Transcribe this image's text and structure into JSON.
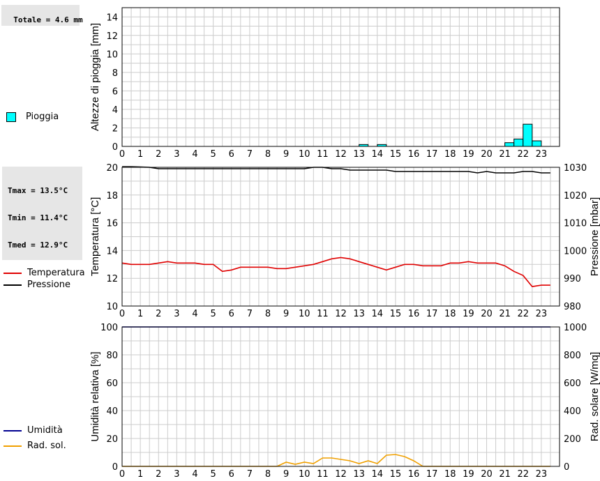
{
  "stats": {
    "rain_total": "Totale = 4.6 mm",
    "tmax": "Tmax = 13.5°C",
    "tmin": "Tmin = 11.4°C",
    "tmed": "Tmed = 12.9°C"
  },
  "legends": {
    "rain": "Pioggia",
    "temp": "Temperatura",
    "press": "Pressione",
    "hum": "Umidità",
    "rad": "Rad. sol."
  },
  "colors": {
    "rain": "#00ffff",
    "temp": "#e00000",
    "press": "#000000",
    "hum": "#000090",
    "rad": "#f0a000",
    "grid": "#cccccc"
  },
  "chart_data": [
    {
      "type": "bar",
      "title": "",
      "xlabel": "",
      "ylabel": "Altezze di pioggia [mm]",
      "xlim": [
        0,
        24
      ],
      "xticks": [
        0,
        1,
        2,
        3,
        4,
        5,
        6,
        7,
        8,
        9,
        10,
        11,
        12,
        13,
        14,
        15,
        16,
        17,
        18,
        19,
        20,
        21,
        22,
        23
      ],
      "ylim": [
        0,
        15
      ],
      "yticks": [
        0,
        2,
        4,
        6,
        8,
        10,
        12,
        14
      ],
      "series": [
        {
          "name": "Pioggia",
          "bars": [
            {
              "x": 13.0,
              "value": 0.2
            },
            {
              "x": 14.0,
              "value": 0.2
            },
            {
              "x": 21.0,
              "value": 0.4
            },
            {
              "x": 21.5,
              "value": 0.8
            },
            {
              "x": 22.0,
              "value": 2.4
            },
            {
              "x": 22.5,
              "value": 0.6
            }
          ],
          "bar_width": 0.5
        }
      ]
    },
    {
      "type": "line",
      "title": "",
      "xlabel": "",
      "ylabel": "Temperatura [°C]",
      "y2label": "Pressione [mbar]",
      "xlim": [
        0,
        24
      ],
      "xticks": [
        0,
        1,
        2,
        3,
        4,
        5,
        6,
        7,
        8,
        9,
        10,
        11,
        12,
        13,
        14,
        15,
        16,
        17,
        18,
        19,
        20,
        21,
        22,
        23
      ],
      "ylim": [
        10,
        20
      ],
      "yticks": [
        10,
        12,
        14,
        16,
        18,
        20
      ],
      "y2lim": [
        980,
        1030
      ],
      "y2ticks": [
        980,
        990,
        1000,
        1010,
        1020,
        1030
      ],
      "series": [
        {
          "name": "Temperatura",
          "axis": "left",
          "x": [
            0,
            0.5,
            1,
            1.5,
            2,
            2.5,
            3,
            3.5,
            4,
            4.5,
            5,
            5.5,
            6,
            6.5,
            7,
            7.5,
            8,
            8.5,
            9,
            9.5,
            10,
            10.5,
            11,
            11.5,
            12,
            12.5,
            13,
            13.5,
            14,
            14.5,
            15,
            15.5,
            16,
            16.5,
            17,
            17.5,
            18,
            18.5,
            19,
            19.5,
            20,
            20.5,
            21,
            21.5,
            22,
            22.5,
            23,
            23.5
          ],
          "y": [
            13.1,
            13.0,
            13.0,
            13.0,
            13.1,
            13.2,
            13.1,
            13.1,
            13.1,
            13.0,
            13.0,
            12.5,
            12.6,
            12.8,
            12.8,
            12.8,
            12.8,
            12.7,
            12.7,
            12.8,
            12.9,
            13.0,
            13.2,
            13.4,
            13.5,
            13.4,
            13.2,
            13.0,
            12.8,
            12.6,
            12.8,
            13.0,
            13.0,
            12.9,
            12.9,
            12.9,
            13.1,
            13.1,
            13.2,
            13.1,
            13.1,
            13.1,
            12.9,
            12.5,
            12.2,
            11.4,
            11.5,
            11.5
          ]
        },
        {
          "name": "Pressione",
          "axis": "right",
          "x": [
            0,
            0.5,
            1,
            1.5,
            2,
            2.5,
            3,
            3.5,
            4,
            4.5,
            5,
            5.5,
            6,
            6.5,
            7,
            7.5,
            8,
            8.5,
            9,
            9.5,
            10,
            10.5,
            11,
            11.5,
            12,
            12.5,
            13,
            13.5,
            14,
            14.5,
            15,
            15.5,
            16,
            16.5,
            17,
            17.5,
            18,
            18.5,
            19,
            19.5,
            20,
            20.5,
            21,
            21.5,
            22,
            22.5,
            23,
            23.5
          ],
          "y": [
            1030.2,
            1030.2,
            1030.1,
            1030.0,
            1029.5,
            1029.5,
            1029.5,
            1029.5,
            1029.5,
            1029.5,
            1029.5,
            1029.5,
            1029.5,
            1029.5,
            1029.5,
            1029.5,
            1029.5,
            1029.5,
            1029.5,
            1029.5,
            1029.5,
            1030.0,
            1030.0,
            1029.5,
            1029.5,
            1029.0,
            1029.0,
            1029.0,
            1029.0,
            1029.0,
            1028.5,
            1028.5,
            1028.5,
            1028.5,
            1028.5,
            1028.5,
            1028.5,
            1028.5,
            1028.5,
            1028.0,
            1028.5,
            1028.0,
            1028.0,
            1028.0,
            1028.5,
            1028.5,
            1028.0,
            1028.0
          ]
        }
      ]
    },
    {
      "type": "line",
      "title": "",
      "xlabel": "",
      "ylabel": "Umidità relativa [%]",
      "y2label": "Rad. solare [W/mq]",
      "xlim": [
        0,
        24
      ],
      "xticks": [
        0,
        1,
        2,
        3,
        4,
        5,
        6,
        7,
        8,
        9,
        10,
        11,
        12,
        13,
        14,
        15,
        16,
        17,
        18,
        19,
        20,
        21,
        22,
        23
      ],
      "ylim": [
        0,
        100
      ],
      "yticks": [
        0,
        20,
        40,
        60,
        80,
        100
      ],
      "y2lim": [
        0,
        1000
      ],
      "y2ticks": [
        0,
        200,
        400,
        600,
        800,
        1000
      ],
      "series": [
        {
          "name": "Umidità",
          "axis": "left",
          "x": [
            0,
            23.5
          ],
          "y": [
            100,
            100
          ]
        },
        {
          "name": "Rad. sol.",
          "axis": "right",
          "x": [
            0,
            8.5,
            9,
            9.5,
            10,
            10.5,
            11,
            11.5,
            12,
            12.5,
            13,
            13.5,
            14,
            14.5,
            15,
            15.5,
            16,
            16.5,
            17,
            23.5
          ],
          "y": [
            0,
            0,
            30,
            15,
            30,
            20,
            60,
            60,
            50,
            40,
            20,
            40,
            20,
            80,
            85,
            70,
            40,
            0,
            0,
            0
          ]
        }
      ]
    }
  ]
}
